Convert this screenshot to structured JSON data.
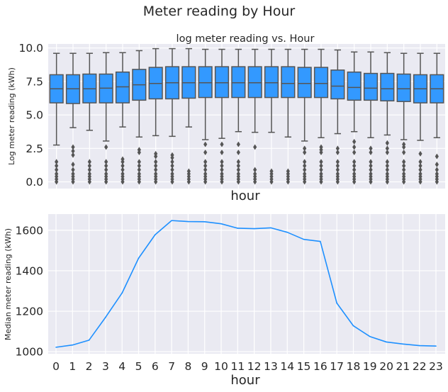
{
  "figure": {
    "title": "Meter reading by Hour"
  },
  "colors": {
    "box_fill": "#3399ff",
    "box_edge": "#555555",
    "line": "#1e90ff",
    "axes_bg": "#eaeaf2",
    "grid": "#ffffff"
  },
  "chart_data": [
    {
      "type": "box",
      "title": "log meter reading vs. Hour",
      "xlabel": "hour",
      "ylabel": "Log meter reading (kWh)",
      "ylim": [
        -0.5,
        10.3
      ],
      "yticks": [
        0.0,
        2.5,
        5.0,
        7.5,
        10.0
      ],
      "ytick_labels": [
        "0.0",
        "2.5",
        "5.0",
        "7.5",
        "10.0"
      ],
      "xtick_labels_visible": false,
      "grid": true,
      "categories": [
        0,
        1,
        2,
        3,
        4,
        5,
        6,
        7,
        8,
        9,
        10,
        11,
        12,
        13,
        14,
        15,
        16,
        17,
        18,
        19,
        20,
        21,
        22,
        23
      ],
      "boxes": [
        {
          "q1": 5.9,
          "median": 6.95,
          "q3": 8.0,
          "whislo": 2.75,
          "whishi": 9.6,
          "fliers": [
            0,
            0.2,
            0.4,
            0.6,
            0.9,
            1.2,
            1.5
          ]
        },
        {
          "q1": 5.85,
          "median": 6.95,
          "q3": 8.0,
          "whislo": 4.05,
          "whishi": 9.6,
          "fliers": [
            0,
            0.2,
            0.4,
            0.6,
            0.9,
            1.3,
            2.0,
            2.3,
            2.6
          ]
        },
        {
          "q1": 5.9,
          "median": 6.95,
          "q3": 8.05,
          "whislo": 3.85,
          "whishi": 9.6,
          "fliers": [
            0,
            0.2,
            0.4,
            0.6,
            0.9,
            1.2,
            1.5
          ]
        },
        {
          "q1": 5.9,
          "median": 7.0,
          "q3": 8.05,
          "whislo": 3.05,
          "whishi": 9.65,
          "fliers": [
            0,
            0.2,
            0.4,
            0.6,
            0.9,
            1.2,
            1.5,
            2.6
          ]
        },
        {
          "q1": 5.9,
          "median": 7.1,
          "q3": 8.2,
          "whislo": 4.1,
          "whishi": 9.65,
          "fliers": [
            0,
            0.2,
            0.4,
            0.6,
            0.9,
            1.2,
            1.5,
            1.7
          ]
        },
        {
          "q1": 6.1,
          "median": 7.25,
          "q3": 8.4,
          "whislo": 3.35,
          "whishi": 9.8,
          "fliers": [
            0,
            0.2,
            0.4,
            0.6,
            0.9,
            1.2,
            1.5,
            2.2,
            2.4
          ]
        },
        {
          "q1": 6.2,
          "median": 7.35,
          "q3": 8.55,
          "whislo": 3.45,
          "whishi": 9.95,
          "fliers": [
            0,
            0.2,
            0.4,
            0.6,
            0.9,
            1.2,
            1.5,
            1.9,
            2.1
          ]
        },
        {
          "q1": 6.2,
          "median": 7.4,
          "q3": 8.6,
          "whislo": 3.4,
          "whishi": 9.95,
          "fliers": [
            0,
            0.2,
            0.4,
            0.6,
            0.9,
            1.2,
            1.5,
            1.8,
            2.0
          ]
        },
        {
          "q1": 6.25,
          "median": 7.4,
          "q3": 8.6,
          "whislo": 4.1,
          "whishi": 9.95,
          "fliers": [
            0,
            0.2,
            0.4,
            0.6,
            0.8
          ]
        },
        {
          "q1": 6.3,
          "median": 7.4,
          "q3": 8.6,
          "whislo": 3.15,
          "whishi": 9.9,
          "fliers": [
            0,
            0.2,
            0.4,
            0.6,
            0.9,
            1.2,
            1.5,
            2.2,
            2.8
          ]
        },
        {
          "q1": 6.3,
          "median": 7.4,
          "q3": 8.6,
          "whislo": 3.25,
          "whishi": 9.9,
          "fliers": [
            0,
            0.2,
            0.4,
            0.6,
            0.9,
            1.2,
            1.5,
            2.2,
            2.8
          ]
        },
        {
          "q1": 6.3,
          "median": 7.4,
          "q3": 8.6,
          "whislo": 3.75,
          "whishi": 9.9,
          "fliers": [
            0,
            0.2,
            0.4,
            0.6,
            0.9,
            1.2,
            1.5,
            2.2,
            2.8
          ]
        },
        {
          "q1": 6.3,
          "median": 7.4,
          "q3": 8.6,
          "whislo": 3.7,
          "whishi": 9.9,
          "fliers": [
            0,
            0.2,
            0.4,
            0.6,
            0.9,
            2.6
          ]
        },
        {
          "q1": 6.3,
          "median": 7.4,
          "q3": 8.6,
          "whislo": 3.7,
          "whishi": 9.9,
          "fliers": [
            0,
            0.2,
            0.4,
            0.6,
            0.8
          ]
        },
        {
          "q1": 6.3,
          "median": 7.35,
          "q3": 8.6,
          "whislo": 3.35,
          "whishi": 9.9,
          "fliers": [
            0,
            0.2,
            0.4,
            0.6,
            0.8
          ]
        },
        {
          "q1": 6.3,
          "median": 7.35,
          "q3": 8.55,
          "whislo": 3.05,
          "whishi": 9.9,
          "fliers": [
            0,
            0.2,
            0.4,
            0.6,
            0.9,
            1.2,
            1.5,
            2.2,
            2.5
          ]
        },
        {
          "q1": 6.3,
          "median": 7.35,
          "q3": 8.55,
          "whislo": 3.3,
          "whishi": 9.9,
          "fliers": [
            0,
            0.2,
            0.4,
            0.6,
            0.9,
            1.2,
            1.5,
            2.2,
            2.4,
            2.6
          ]
        },
        {
          "q1": 6.2,
          "median": 7.15,
          "q3": 8.35,
          "whislo": 3.6,
          "whishi": 9.85,
          "fliers": [
            0,
            0.2,
            0.4,
            0.6,
            0.9,
            1.2,
            1.5,
            2.2,
            2.5
          ]
        },
        {
          "q1": 6.1,
          "median": 7.05,
          "q3": 8.2,
          "whislo": 3.75,
          "whishi": 9.7,
          "fliers": [
            0,
            0.2,
            0.4,
            0.6,
            0.9,
            1.2,
            1.5,
            2.2,
            2.6,
            3.0
          ]
        },
        {
          "q1": 6.1,
          "median": 7.0,
          "q3": 8.1,
          "whislo": 3.3,
          "whishi": 9.7,
          "fliers": [
            0,
            0.2,
            0.4,
            0.6,
            0.9,
            1.2,
            1.5,
            2.2,
            2.5
          ]
        },
        {
          "q1": 6.05,
          "median": 6.95,
          "q3": 8.1,
          "whislo": 3.5,
          "whishi": 9.65,
          "fliers": [
            0,
            0.2,
            0.4,
            0.6,
            0.9,
            1.2,
            1.5,
            2.2,
            2.5,
            2.9
          ]
        },
        {
          "q1": 6.0,
          "median": 6.95,
          "q3": 8.05,
          "whislo": 3.15,
          "whishi": 9.6,
          "fliers": [
            0,
            0.2,
            0.4,
            0.6,
            0.9,
            1.2,
            1.5,
            2.2,
            2.6,
            2.8
          ]
        },
        {
          "q1": 5.9,
          "median": 6.95,
          "q3": 8.0,
          "whislo": 3.1,
          "whishi": 9.6,
          "fliers": [
            0,
            0.2,
            0.4,
            0.6,
            0.9,
            1.2,
            1.5,
            2.1
          ]
        },
        {
          "q1": 5.9,
          "median": 6.95,
          "q3": 8.0,
          "whislo": 3.3,
          "whishi": 9.6,
          "fliers": [
            0,
            0.2,
            0.4,
            0.6,
            0.9,
            1.3,
            1.9
          ]
        }
      ]
    },
    {
      "type": "line",
      "title": "",
      "xlabel": "hour",
      "ylabel": "Median meter reading (kWh)",
      "ylim": [
        990,
        1680
      ],
      "yticks": [
        1000,
        1200,
        1400,
        1600
      ],
      "ytick_labels": [
        "1000",
        "1200",
        "1400",
        "1600"
      ],
      "grid": true,
      "x": [
        0,
        1,
        2,
        3,
        4,
        5,
        6,
        7,
        8,
        9,
        10,
        11,
        12,
        13,
        14,
        15,
        16,
        17,
        18,
        19,
        20,
        21,
        22,
        23
      ],
      "xtick_labels": [
        "0",
        "1",
        "2",
        "3",
        "4",
        "5",
        "6",
        "7",
        "8",
        "9",
        "10",
        "11",
        "12",
        "13",
        "14",
        "15",
        "16",
        "17",
        "18",
        "19",
        "20",
        "21",
        "22",
        "23"
      ],
      "y": [
        1022,
        1033,
        1057,
        1170,
        1290,
        1462,
        1578,
        1648,
        1643,
        1642,
        1632,
        1610,
        1608,
        1612,
        1590,
        1555,
        1545,
        1240,
        1128,
        1075,
        1048,
        1038,
        1030,
        1028
      ]
    }
  ]
}
